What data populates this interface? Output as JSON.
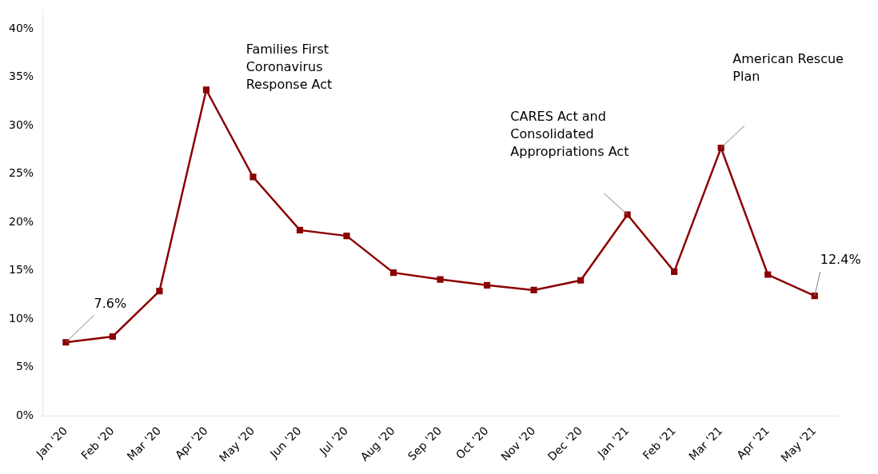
{
  "chart_data": {
    "type": "line",
    "categories": [
      "Jan '20",
      "Feb '20",
      "Mar '20",
      "Apr '20",
      "May '20",
      "Jun '20",
      "Jul '20",
      "Aug '20",
      "Sep '20",
      "Oct '20",
      "Nov '20",
      "Dec '20",
      "Jan '21",
      "Feb '21",
      "Mar '21",
      "Apr '21",
      "May '21"
    ],
    "values": [
      7.6,
      8.2,
      12.9,
      33.7,
      24.7,
      19.2,
      18.6,
      14.8,
      14.1,
      13.5,
      13.0,
      14.0,
      20.8,
      14.9,
      27.7,
      14.6,
      12.4
    ],
    "color": "#8B0000",
    "marker": "square",
    "ylim": [
      0,
      42
    ],
    "yticks": [
      {
        "value": 0,
        "label": "0%"
      },
      {
        "value": 5,
        "label": "5%"
      },
      {
        "value": 10,
        "label": "10%"
      },
      {
        "value": 15,
        "label": "15%"
      },
      {
        "value": 20,
        "label": "20%"
      },
      {
        "value": 25,
        "label": "25%"
      },
      {
        "value": 30,
        "label": "30%"
      },
      {
        "value": 35,
        "label": "35%"
      },
      {
        "value": 40,
        "label": "40%"
      }
    ],
    "grid": false,
    "annotations": [
      {
        "text": "7.6%",
        "x": "Jan '20"
      },
      {
        "text": "12.4%",
        "x": "May '21"
      },
      {
        "text": "Families First\nCoronavirus\nResponse Act",
        "x": "Apr '20"
      },
      {
        "text": "CARES Act and\nConsolidated\nAppropriations Act",
        "x": "Jan '21"
      },
      {
        "text": "American Rescue\nPlan",
        "x": "Mar '21"
      }
    ]
  }
}
